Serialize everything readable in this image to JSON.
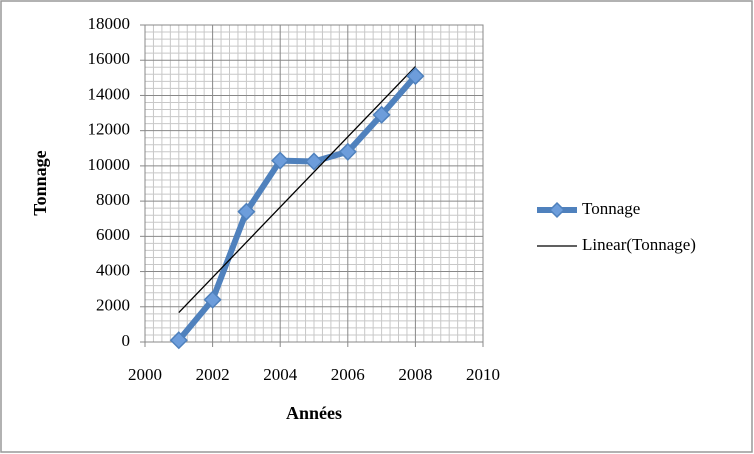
{
  "chart_data": {
    "type": "scatter-line",
    "x_label": "Années",
    "y_label": "Tonnage",
    "x": [
      2001,
      2002,
      2003,
      2004,
      2005,
      2006,
      2007,
      2008
    ],
    "series": [
      {
        "name": "Tonnage",
        "color": "#4f81bd",
        "marker_color": "#6d9ddb",
        "values": [
          100,
          2400,
          7400,
          10300,
          10250,
          10800,
          12900,
          15100
        ],
        "trendline": {
          "type": "linear",
          "name": "Linear(Tonnage)",
          "color": "#000000"
        }
      }
    ],
    "xlim": [
      2000,
      2010
    ],
    "xticks": [
      2000,
      2002,
      2004,
      2006,
      2008,
      2010
    ],
    "ylim": [
      0,
      18000
    ],
    "yticks": [
      0,
      2000,
      4000,
      6000,
      8000,
      10000,
      12000,
      14000,
      16000,
      18000
    ],
    "grid": true,
    "minor_grid": {
      "x": 8,
      "y": 5
    },
    "legend": "right"
  }
}
